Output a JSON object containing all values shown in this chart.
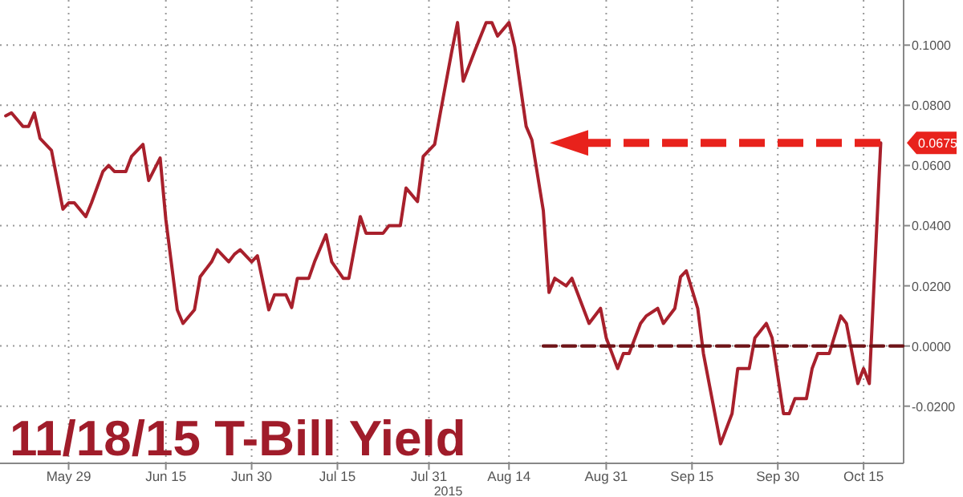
{
  "chart_data": {
    "type": "line",
    "title": "11/18/15 T-Bill Yield",
    "annotations": [
      "2015"
    ],
    "xlim": [
      "2015-05-17",
      "2015-10-22"
    ],
    "xticks": [
      {
        "value": "2015-05-29",
        "label": "May 29"
      },
      {
        "value": "2015-06-15",
        "label": "Jun 15"
      },
      {
        "value": "2015-06-30",
        "label": "Jun 30"
      },
      {
        "value": "2015-07-15",
        "label": "Jul 15"
      },
      {
        "value": "2015-07-31",
        "label": "Jul 31"
      },
      {
        "value": "2015-08-14",
        "label": "Aug 14"
      },
      {
        "value": "2015-08-31",
        "label": "Aug 31"
      },
      {
        "value": "2015-09-15",
        "label": "Sep 15"
      },
      {
        "value": "2015-09-30",
        "label": "Sep 30"
      },
      {
        "value": "2015-10-15",
        "label": "Oct 15"
      }
    ],
    "ylim": [
      -0.039,
      0.115
    ],
    "yticks": [
      {
        "value": -0.02,
        "label": "-0.0200"
      },
      {
        "value": 0,
        "label": "0.0000"
      },
      {
        "value": 0.02,
        "label": "0.0200"
      },
      {
        "value": 0.04,
        "label": "0.0400"
      },
      {
        "value": 0.06,
        "label": "0.0600"
      },
      {
        "value": 0.08,
        "label": "0.0800"
      },
      {
        "value": 0.1,
        "label": "0.1000"
      }
    ],
    "grid": true,
    "marker": "none",
    "ref_lines": [
      {
        "axis": "y",
        "value": 0.0675,
        "label": "0.0675",
        "color": "#e8221c",
        "line_style": "dashed"
      }
    ],
    "series": [
      {
        "color": "#a8202c",
        "line_style": "solid",
        "x": [
          "2015-05-18",
          "2015-05-19",
          "2015-05-21",
          "2015-05-22",
          "2015-05-23",
          "2015-05-24",
          "2015-05-26",
          "2015-05-28",
          "2015-05-29",
          "2015-05-30",
          "2015-06-01",
          "2015-06-02",
          "2015-06-04",
          "2015-06-05",
          "2015-06-06",
          "2015-06-08",
          "2015-06-09",
          "2015-06-11",
          "2015-06-12",
          "2015-06-14",
          "2015-06-15",
          "2015-06-17",
          "2015-06-18",
          "2015-06-20",
          "2015-06-21",
          "2015-06-23",
          "2015-06-24",
          "2015-06-26",
          "2015-06-27",
          "2015-06-28",
          "2015-06-30",
          "2015-07-01",
          "2015-07-03",
          "2015-07-04",
          "2015-07-06",
          "2015-07-07",
          "2015-07-08",
          "2015-07-10",
          "2015-07-11",
          "2015-07-13",
          "2015-07-14",
          "2015-07-16",
          "2015-07-17",
          "2015-07-19",
          "2015-07-20",
          "2015-07-21",
          "2015-07-23",
          "2015-07-24",
          "2015-07-26",
          "2015-07-27",
          "2015-07-29",
          "2015-07-30",
          "2015-08-01",
          "2015-08-02",
          "2015-08-04",
          "2015-08-05",
          "2015-08-06",
          "2015-08-08",
          "2015-08-10",
          "2015-08-11",
          "2015-08-12",
          "2015-08-14",
          "2015-08-15",
          "2015-08-17",
          "2015-08-18",
          "2015-08-20",
          "2015-08-21",
          "2015-08-22",
          "2015-08-24",
          "2015-08-25",
          "2015-08-27",
          "2015-08-28",
          "2015-08-30",
          "2015-08-31",
          "2015-09-02",
          "2015-09-03",
          "2015-09-04",
          "2015-09-06",
          "2015-09-07",
          "2015-09-09",
          "2015-09-10",
          "2015-09-12",
          "2015-09-13",
          "2015-09-14",
          "2015-09-16",
          "2015-09-17",
          "2015-09-19",
          "2015-09-20",
          "2015-09-22",
          "2015-09-23",
          "2015-09-25",
          "2015-09-26",
          "2015-09-28",
          "2015-09-29",
          "2015-10-01",
          "2015-10-02",
          "2015-10-03",
          "2015-10-05",
          "2015-10-06",
          "2015-10-07",
          "2015-10-09",
          "2015-10-11",
          "2015-10-12",
          "2015-10-14",
          "2015-10-15",
          "2015-10-16",
          "2015-10-18"
        ],
        "values": [
          0.0765,
          0.0775,
          0.073,
          0.073,
          0.0775,
          0.069,
          0.065,
          0.0455,
          0.0476,
          0.0476,
          0.043,
          0.0476,
          0.058,
          0.06,
          0.058,
          0.058,
          0.063,
          0.067,
          0.055,
          0.0625,
          0.042,
          0.012,
          0.0075,
          0.012,
          0.023,
          0.028,
          0.032,
          0.028,
          0.0305,
          0.032,
          0.028,
          0.03,
          0.012,
          0.017,
          0.017,
          0.0128,
          0.0225,
          0.0225,
          0.028,
          0.037,
          0.028,
          0.0225,
          0.0225,
          0.043,
          0.0375,
          0.0375,
          0.0375,
          0.04,
          0.04,
          0.0525,
          0.048,
          0.063,
          0.067,
          0.0775,
          0.098,
          0.1075,
          0.088,
          0.098,
          0.1075,
          0.1075,
          0.103,
          0.1075,
          0.0995,
          0.073,
          0.0685,
          0.045,
          0.0178,
          0.0225,
          0.02,
          0.0225,
          0.0125,
          0.0075,
          0.0125,
          0.0027,
          -0.0075,
          -0.0025,
          -0.0025,
          0.0075,
          0.01,
          0.0125,
          0.0075,
          0.0125,
          0.023,
          0.025,
          0.0125,
          -0.0025,
          -0.0225,
          -0.0325,
          -0.0225,
          -0.0075,
          -0.0075,
          0.0027,
          0.0075,
          0.0027,
          -0.0225,
          -0.0225,
          -0.0175,
          -0.0175,
          -0.0075,
          -0.0025,
          -0.0025,
          0.01,
          0.0075,
          -0.0125,
          -0.0075,
          -0.0125,
          0.0675
        ]
      },
      {
        "color": "#6e1418",
        "line_style": "dashed",
        "x": [
          "2015-08-20",
          "2015-10-22"
        ],
        "values": [
          0,
          0
        ]
      }
    ]
  }
}
